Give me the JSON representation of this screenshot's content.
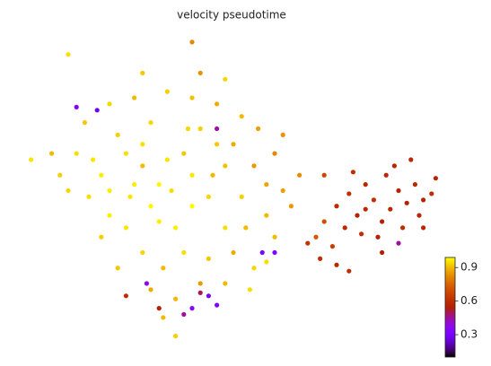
{
  "chart_data": {
    "type": "scatter",
    "title": "velocity pseudotime",
    "xlim": [
      0,
      100
    ],
    "ylim": [
      0,
      100
    ],
    "x": [
      12,
      18,
      22,
      25,
      28,
      30,
      32,
      35,
      38,
      40,
      42,
      45,
      48,
      50,
      52,
      55,
      58,
      60,
      62,
      28,
      33,
      38,
      44,
      50,
      55,
      24,
      20,
      15,
      10,
      8,
      6,
      14,
      20,
      26,
      34,
      40,
      46,
      52,
      56,
      62,
      66,
      64,
      60,
      18,
      22,
      30,
      36,
      42,
      48,
      54,
      26,
      30,
      34,
      36,
      44,
      46,
      48,
      40,
      32,
      24,
      16,
      20,
      58,
      53,
      39,
      28,
      1,
      42,
      40,
      10,
      36,
      33,
      58,
      28,
      48,
      40,
      44,
      46,
      38,
      42,
      29,
      24,
      17,
      12,
      60,
      57,
      46,
      32,
      72,
      75,
      78,
      80,
      82,
      84,
      86,
      87,
      88,
      90,
      91,
      92,
      94,
      95,
      96,
      98,
      89,
      93,
      85,
      81,
      77,
      74,
      72,
      70,
      68,
      71,
      75,
      78,
      86,
      90,
      82,
      79,
      96,
      99
    ],
    "y": [
      62,
      55,
      68,
      48,
      58,
      72,
      40,
      50,
      62,
      45,
      70,
      55,
      38,
      65,
      48,
      58,
      42,
      62,
      50,
      30,
      25,
      30,
      28,
      30,
      25,
      38,
      42,
      48,
      50,
      55,
      62,
      72,
      78,
      80,
      82,
      80,
      78,
      74,
      70,
      68,
      55,
      45,
      35,
      35,
      25,
      18,
      15,
      20,
      20,
      18,
      52,
      45,
      60,
      38,
      48,
      65,
      58,
      55,
      52,
      62,
      60,
      50,
      52,
      38,
      70,
      65,
      60,
      88,
      98,
      94,
      3,
      9,
      27,
      88,
      86,
      12,
      16,
      13,
      10,
      17,
      20,
      16,
      76,
      77,
      30,
      30,
      70,
      12,
      55,
      45,
      49,
      42,
      52,
      47,
      40,
      55,
      44,
      50,
      38,
      46,
      52,
      42,
      47,
      49,
      58,
      60,
      35,
      36,
      38,
      32,
      40,
      35,
      33,
      28,
      26,
      24,
      30,
      33,
      44,
      56,
      38,
      54
    ],
    "c": [
      0.95,
      0.97,
      0.93,
      0.96,
      0.9,
      0.94,
      0.97,
      0.95,
      0.92,
      0.98,
      0.93,
      0.9,
      0.95,
      0.88,
      0.93,
      0.85,
      0.9,
      0.82,
      0.86,
      0.94,
      0.9,
      0.95,
      0.92,
      0.88,
      0.94,
      0.96,
      0.97,
      0.95,
      0.94,
      0.93,
      0.9,
      0.92,
      0.94,
      0.9,
      0.93,
      0.91,
      0.88,
      0.9,
      0.86,
      0.84,
      0.83,
      0.85,
      0.9,
      0.93,
      0.92,
      0.88,
      0.9,
      0.85,
      0.9,
      0.95,
      0.97,
      0.98,
      0.96,
      0.97,
      0.94,
      0.92,
      0.91,
      0.96,
      0.98,
      0.95,
      0.96,
      0.97,
      0.87,
      0.9,
      0.94,
      0.95,
      0.96,
      0.84,
      0.82,
      0.95,
      0.93,
      0.9,
      0.95,
      0.92,
      0.94,
      0.35,
      0.3,
      0.32,
      0.45,
      0.5,
      0.38,
      0.6,
      0.28,
      0.32,
      0.33,
      0.3,
      0.45,
      0.55,
      0.68,
      0.58,
      0.6,
      0.56,
      0.57,
      0.6,
      0.55,
      0.58,
      0.57,
      0.56,
      0.59,
      0.55,
      0.58,
      0.57,
      0.56,
      0.6,
      0.57,
      0.58,
      0.55,
      0.6,
      0.57,
      0.65,
      0.7,
      0.72,
      0.62,
      0.6,
      0.58,
      0.6,
      0.54,
      0.45,
      0.58,
      0.6,
      0.57,
      0.56
    ],
    "clim": [
      0.1,
      0.99
    ],
    "cticks": [
      0.3,
      0.6,
      0.9
    ],
    "colormap": "gnuplot"
  }
}
